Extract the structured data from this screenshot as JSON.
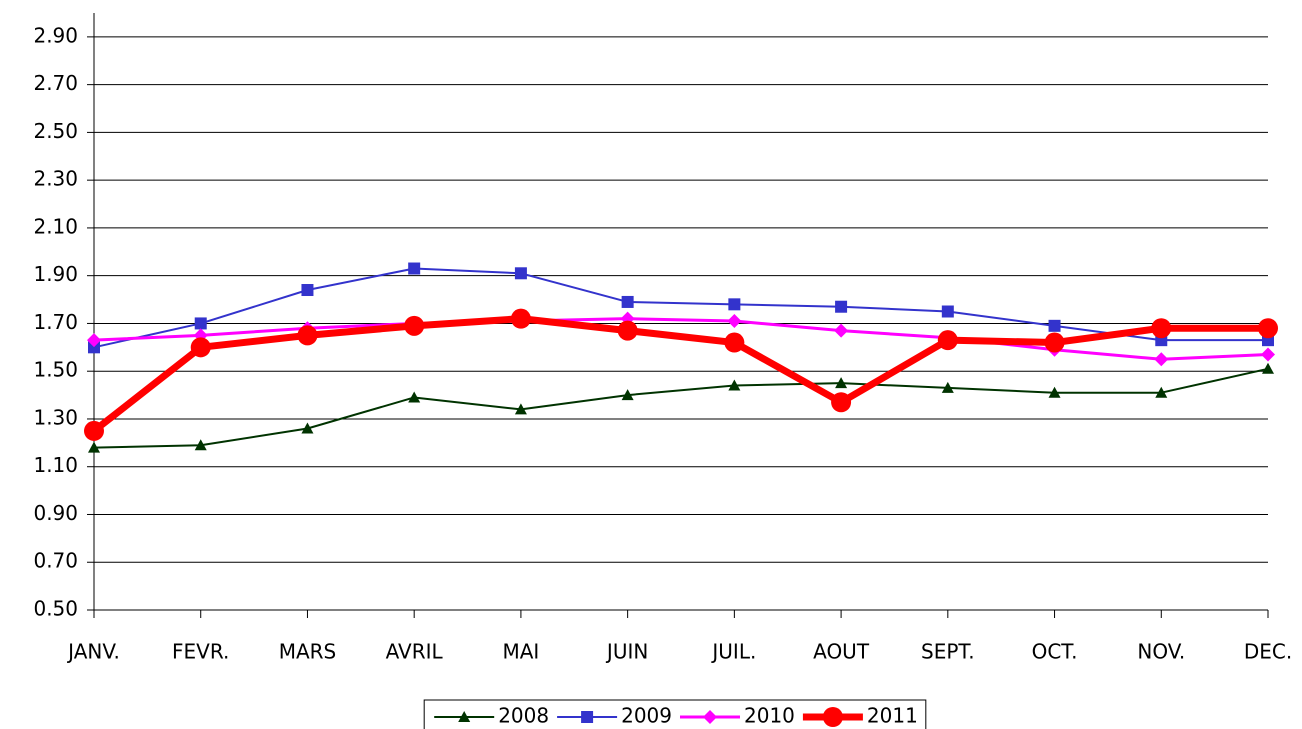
{
  "chart_data": {
    "type": "line",
    "categories": [
      "JANV.",
      "FEVR.",
      "MARS",
      "AVRIL",
      "MAI",
      "JUIN",
      "JUIL.",
      "AOUT",
      "SEPT.",
      "OCT.",
      "NOV.",
      "DEC."
    ],
    "series": [
      {
        "name": "2008",
        "color": "#003300",
        "marker": "triangle",
        "line_width": 2,
        "values": [
          1.18,
          1.19,
          1.26,
          1.39,
          1.34,
          1.4,
          1.44,
          1.45,
          1.43,
          1.41,
          1.41,
          1.51
        ]
      },
      {
        "name": "2009",
        "color": "#3333cc",
        "marker": "square",
        "line_width": 2,
        "values": [
          1.6,
          1.7,
          1.84,
          1.93,
          1.91,
          1.79,
          1.78,
          1.77,
          1.75,
          1.69,
          1.63,
          1.63
        ]
      },
      {
        "name": "2010",
        "color": "#ff00ff",
        "marker": "diamond",
        "line_width": 3,
        "values": [
          1.63,
          1.65,
          1.68,
          1.7,
          1.71,
          1.72,
          1.71,
          1.67,
          1.64,
          1.59,
          1.55,
          1.57
        ]
      },
      {
        "name": "2011",
        "color": "#ff0000",
        "marker": "circle",
        "line_width": 7,
        "values": [
          1.25,
          1.6,
          1.65,
          1.69,
          1.72,
          1.67,
          1.62,
          1.37,
          1.63,
          1.62,
          1.68,
          1.68
        ]
      }
    ],
    "ylim": [
      0.5,
      3.0
    ],
    "yticks": [
      {
        "value": 0.5,
        "label": "0.50"
      },
      {
        "value": 0.7,
        "label": "0.70"
      },
      {
        "value": 0.9,
        "label": "0.90"
      },
      {
        "value": 1.1,
        "label": "1.10"
      },
      {
        "value": 1.3,
        "label": "1.30"
      },
      {
        "value": 1.5,
        "label": "1.50"
      },
      {
        "value": 1.7,
        "label": "1.70"
      },
      {
        "value": 1.9,
        "label": "1.90"
      },
      {
        "value": 2.1,
        "label": "2.10"
      },
      {
        "value": 2.3,
        "label": "2.30"
      },
      {
        "value": 2.5,
        "label": "2.50"
      },
      {
        "value": 2.7,
        "label": "2.70"
      },
      {
        "value": 2.9,
        "label": "2.90"
      }
    ],
    "grid": true,
    "legend": "bottom"
  }
}
